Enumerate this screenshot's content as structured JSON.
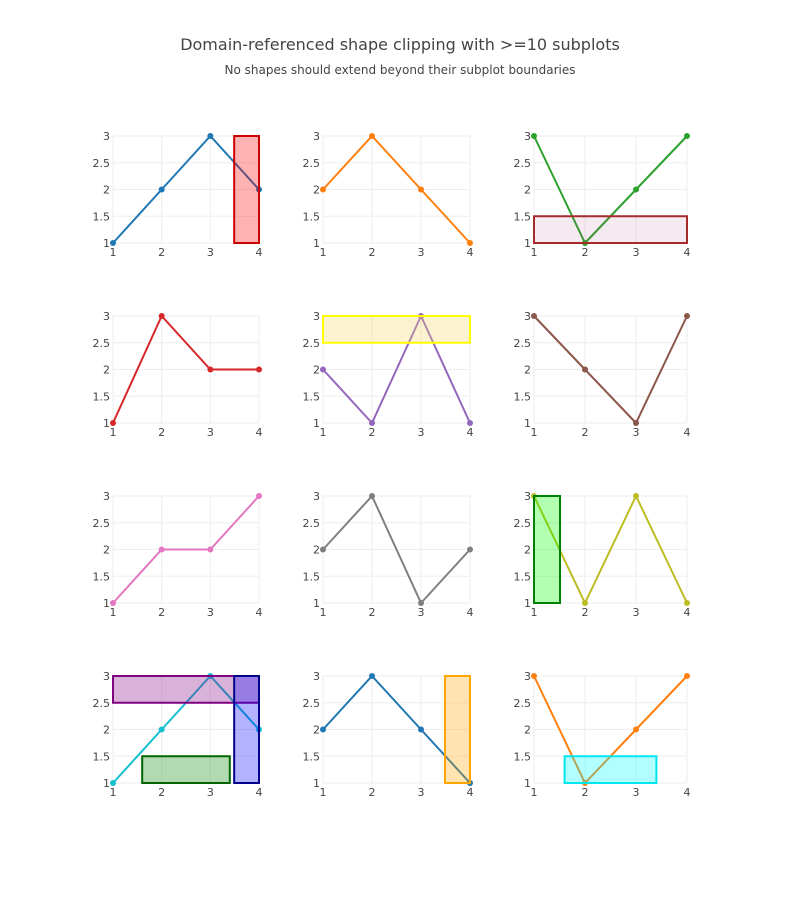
{
  "title": "Domain-referenced shape clipping with >=10 subplots",
  "subtitle": "No shapes should extend beyond their subplot boundaries",
  "chart_data": {
    "type": "line",
    "grid": true,
    "x_ticks": [
      1,
      2,
      3,
      4
    ],
    "y_ticks": [
      1,
      1.5,
      2,
      2.5,
      3
    ],
    "xlim": [
      1,
      4
    ],
    "ylim": [
      1,
      3
    ],
    "subplots": [
      {
        "id": 1,
        "x": [
          1,
          2,
          3,
          4
        ],
        "y": [
          1,
          2,
          3,
          2
        ],
        "color": "#1f77b4",
        "shapes": [
          {
            "x0": 0.83,
            "x1": 1.0,
            "y0": 0.0,
            "y1": 1.0,
            "fill": "#ff0000",
            "opacity": 0.3,
            "line": "#cc0000"
          }
        ]
      },
      {
        "id": 2,
        "x": [
          1,
          2,
          3,
          4
        ],
        "y": [
          2,
          3,
          2,
          1
        ],
        "color": "#ff7f0e",
        "shapes": []
      },
      {
        "id": 3,
        "x": [
          1,
          2,
          3,
          4
        ],
        "y": [
          3,
          1,
          2,
          3
        ],
        "color": "#2ca02c",
        "shapes": [
          {
            "x0": 0.0,
            "x1": 1.0,
            "y0": 0.0,
            "y1": 0.25,
            "fill": "#b0507a",
            "opacity": 0.12,
            "line": "#a52a2a"
          }
        ]
      },
      {
        "id": 4,
        "x": [
          1,
          2,
          3,
          4
        ],
        "y": [
          1,
          3,
          2,
          2
        ],
        "color": "#d62728",
        "shapes": []
      },
      {
        "id": 5,
        "x": [
          1,
          2,
          3,
          4
        ],
        "y": [
          2,
          1,
          3,
          1
        ],
        "color": "#9467bd",
        "shapes": [
          {
            "x0": 0.0,
            "x1": 1.0,
            "y0": 0.75,
            "y1": 1.0,
            "fill": "#f2d36b",
            "opacity": 0.3,
            "line": "#ffff00"
          }
        ]
      },
      {
        "id": 6,
        "x": [
          1,
          2,
          3,
          4
        ],
        "y": [
          3,
          2,
          1,
          3
        ],
        "color": "#8c564b",
        "shapes": []
      },
      {
        "id": 7,
        "x": [
          1,
          2,
          3,
          4
        ],
        "y": [
          1,
          2,
          2,
          3
        ],
        "color": "#e377c2",
        "shapes": []
      },
      {
        "id": 8,
        "x": [
          1,
          2,
          3,
          4
        ],
        "y": [
          2,
          3,
          1,
          2
        ],
        "color": "#7f7f7f",
        "shapes": []
      },
      {
        "id": 9,
        "x": [
          1,
          2,
          3,
          4
        ],
        "y": [
          3,
          1,
          3,
          1
        ],
        "color": "#bcbd22",
        "shapes": [
          {
            "x0": 0.0,
            "x1": 0.17,
            "y0": 0.0,
            "y1": 1.0,
            "fill": "#00ff00",
            "opacity": 0.3,
            "line": "#008000"
          }
        ]
      },
      {
        "id": 10,
        "x": [
          1,
          2,
          3,
          4
        ],
        "y": [
          1,
          2,
          3,
          2
        ],
        "color": "#17becf",
        "shapes": [
          {
            "x0": 0.0,
            "x1": 1.0,
            "y0": 0.75,
            "y1": 1.0,
            "fill": "#800080",
            "opacity": 0.3,
            "line": "#800080"
          },
          {
            "x0": 0.2,
            "x1": 0.8,
            "y0": 0.0,
            "y1": 0.25,
            "fill": "#008000",
            "opacity": 0.3,
            "line": "#006400"
          },
          {
            "x0": 0.83,
            "x1": 1.0,
            "y0": 0.0,
            "y1": 1.0,
            "fill": "#0000ff",
            "opacity": 0.3,
            "line": "#00008b"
          }
        ]
      },
      {
        "id": 11,
        "x": [
          1,
          2,
          3,
          4
        ],
        "y": [
          2,
          3,
          2,
          1
        ],
        "color": "#1f77b4",
        "shapes": [
          {
            "x0": 0.83,
            "x1": 1.0,
            "y0": 0.0,
            "y1": 1.0,
            "fill": "#ffa500",
            "opacity": 0.3,
            "line": "#ffa500"
          }
        ]
      },
      {
        "id": 12,
        "x": [
          1,
          2,
          3,
          4
        ],
        "y": [
          3,
          1,
          2,
          3
        ],
        "color": "#ff7f0e",
        "shapes": [
          {
            "x0": 0.2,
            "x1": 0.8,
            "y0": 0.0,
            "y1": 0.25,
            "fill": "#00ffff",
            "opacity": 0.3,
            "line": "#00e5ee"
          }
        ]
      }
    ]
  }
}
